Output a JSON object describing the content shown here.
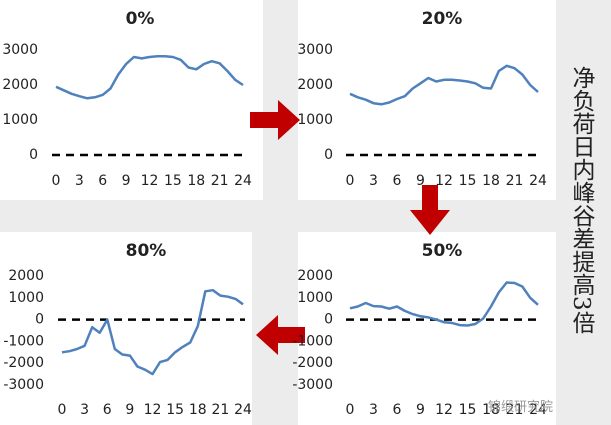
{
  "chart_data": [
    {
      "type": "line",
      "title": "0%",
      "x": [
        0,
        1,
        2,
        3,
        4,
        5,
        6,
        7,
        8,
        9,
        10,
        11,
        12,
        13,
        14,
        15,
        16,
        17,
        18,
        19,
        20,
        21,
        22,
        23,
        24
      ],
      "values": [
        1950,
        1850,
        1750,
        1680,
        1620,
        1650,
        1720,
        1900,
        2300,
        2600,
        2800,
        2760,
        2800,
        2820,
        2820,
        2800,
        2720,
        2500,
        2450,
        2600,
        2680,
        2620,
        2400,
        2150,
        2000
      ],
      "color": "#4f81bd",
      "xlim": [
        0,
        24
      ],
      "xticks": [
        0,
        3,
        6,
        9,
        12,
        15,
        18,
        21,
        24
      ],
      "ylim": [
        0,
        3000
      ],
      "yticks": [
        0,
        1000,
        2000,
        3000
      ],
      "hline": 0
    },
    {
      "type": "line",
      "title": "20%",
      "x": [
        0,
        1,
        2,
        3,
        4,
        5,
        6,
        7,
        8,
        9,
        10,
        11,
        12,
        13,
        14,
        15,
        16,
        17,
        18,
        19,
        20,
        21,
        22,
        23,
        24
      ],
      "values": [
        1750,
        1650,
        1580,
        1480,
        1450,
        1500,
        1600,
        1680,
        1900,
        2050,
        2200,
        2100,
        2150,
        2150,
        2130,
        2100,
        2050,
        1920,
        1900,
        2400,
        2550,
        2480,
        2300,
        2000,
        1800
      ],
      "color": "#4f81bd",
      "xlim": [
        0,
        24
      ],
      "xticks": [
        0,
        3,
        6,
        9,
        12,
        15,
        18,
        21,
        24
      ],
      "ylim": [
        0,
        3000
      ],
      "yticks": [
        0,
        1000,
        2000,
        3000
      ],
      "hline": 0
    },
    {
      "type": "line",
      "title": "80%",
      "x": [
        0,
        1,
        2,
        3,
        4,
        5,
        6,
        7,
        8,
        9,
        10,
        11,
        12,
        13,
        14,
        15,
        16,
        17,
        18,
        19,
        20,
        21,
        22,
        23,
        24
      ],
      "values": [
        -1500,
        -1450,
        -1350,
        -1200,
        -350,
        -600,
        0,
        -1350,
        -1600,
        -1650,
        -2150,
        -2300,
        -2500,
        -1950,
        -1850,
        -1500,
        -1250,
        -1050,
        -300,
        1300,
        1350,
        1100,
        1050,
        950,
        700
      ],
      "color": "#4f81bd",
      "xlim": [
        0,
        24
      ],
      "xticks": [
        0,
        3,
        6,
        9,
        12,
        15,
        18,
        21,
        24
      ],
      "ylim": [
        -3000,
        2000
      ],
      "yticks": [
        -3000,
        -2000,
        -1000,
        0,
        1000,
        2000
      ],
      "hline": 0
    },
    {
      "type": "line",
      "title": "50%",
      "x": [
        0,
        1,
        2,
        3,
        4,
        5,
        6,
        7,
        8,
        9,
        10,
        11,
        12,
        13,
        14,
        15,
        16,
        17,
        18,
        19,
        20,
        21,
        22,
        23,
        24
      ],
      "values": [
        520,
        600,
        760,
        620,
        600,
        500,
        600,
        400,
        250,
        150,
        100,
        0,
        -120,
        -150,
        -250,
        -270,
        -200,
        50,
        600,
        1250,
        1700,
        1680,
        1520,
        1000,
        680
      ],
      "color": "#4f81bd",
      "xlim": [
        0,
        24
      ],
      "xticks": [
        0,
        3,
        6,
        9,
        12,
        15,
        18,
        21,
        24
      ],
      "ylim": [
        -3000,
        2000
      ],
      "yticks": [
        -3000,
        -2000,
        -1000,
        0,
        1000,
        2000
      ],
      "hline": 0
    }
  ],
  "annotation": "净负荷日内峰谷差提高3倍",
  "watermark": "锦缎研究院"
}
